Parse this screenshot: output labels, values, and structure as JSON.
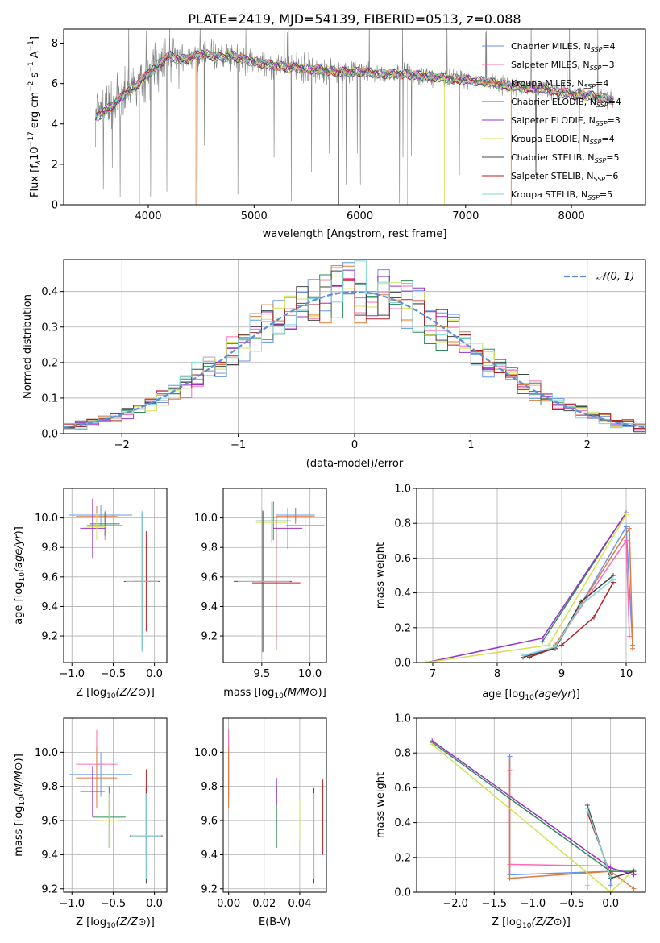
{
  "figure_title": "PLATE=2419, MJD=54139, FIBERID=0513, z=0.088",
  "colors": {
    "Chabrier MILES": "#6495ed",
    "Salpeter MILES": "#ff69b4",
    "Kroupa MILES": "#e07b39",
    "Chabrier ELODIE": "#2e8b57",
    "Salpeter ELODIE": "#9932cc",
    "Kroupa ELODIE": "#d4e157",
    "Chabrier STELIB": "#444444",
    "Salpeter STELIB": "#b22222",
    "Kroupa STELIB": "#7fd6d6",
    "data": "#808080",
    "normal": "#5b8fd9"
  },
  "chart_data": [
    {
      "id": "spectrum",
      "type": "line",
      "title": "PLATE=2419, MJD=54139, FIBERID=0513, z=0.088",
      "xlabel": "wavelength [Angstrom, rest frame]",
      "ylabel_parts": [
        "Flux [f",
        "λ",
        "10",
        "−17",
        " erg cm",
        "−2",
        " s",
        "−1",
        " A",
        "−1",
        "]"
      ],
      "xlim": [
        3200,
        8700
      ],
      "ylim": [
        0,
        8.7
      ],
      "xticks": [
        4000,
        5000,
        6000,
        7000,
        8000
      ],
      "yticks": [
        0,
        2,
        4,
        6,
        8
      ],
      "continuum": {
        "x": [
          3500,
          3600,
          3700,
          3800,
          3900,
          4000,
          4100,
          4200,
          4300,
          4400,
          4500,
          4600,
          4700,
          4800,
          4900,
          5000,
          5200,
          5400,
          5600,
          5800,
          6000,
          6200,
          6400,
          6600,
          6800,
          7000,
          7200,
          7400,
          7600,
          7800,
          8000,
          8200,
          8300,
          8400
        ],
        "y": [
          4.3,
          4.7,
          5.1,
          5.6,
          6.0,
          6.5,
          7.0,
          7.4,
          7.2,
          7.3,
          7.5,
          7.4,
          7.3,
          7.4,
          7.2,
          7.1,
          6.9,
          6.8,
          6.7,
          6.6,
          6.6,
          6.5,
          6.5,
          6.4,
          6.3,
          6.2,
          6.1,
          5.9,
          5.8,
          5.7,
          5.5,
          5.4,
          5.3,
          5.2
        ]
      },
      "legend": [
        {
          "model": "Chabrier MILES",
          "nssp": "4"
        },
        {
          "model": "Salpeter MILES",
          "nssp": "3"
        },
        {
          "model": "Kroupa MILES",
          "nssp": "4"
        },
        {
          "model": "Chabrier ELODIE",
          "nssp": "4"
        },
        {
          "model": "Salpeter ELODIE",
          "nssp": "3"
        },
        {
          "model": "Kroupa ELODIE",
          "nssp": "4"
        },
        {
          "model": "Chabrier STELIB",
          "nssp": "5"
        },
        {
          "model": "Salpeter STELIB",
          "nssp": "6"
        },
        {
          "model": "Kroupa STELIB",
          "nssp": "5"
        }
      ]
    },
    {
      "id": "residuals",
      "type": "bar",
      "xlabel": "(data-model)/error",
      "ylabel": "Normed distribution",
      "xlim": [
        -2.5,
        2.5
      ],
      "ylim": [
        0,
        0.49
      ],
      "xticks": [
        -2,
        -1,
        0,
        1,
        2
      ],
      "yticks": [
        0.0,
        0.1,
        0.2,
        0.3,
        0.4
      ],
      "bin_width": 0.1,
      "legend_label": "N(0,1)",
      "gaussian": {
        "mean": 0,
        "sigma": 1
      }
    },
    {
      "id": "age_vs_Z",
      "type": "scatter",
      "xlabel": "Z [log10(Z/Z⊙)]",
      "ylabel": "age  [log10(age/yr)]",
      "xlim": [
        -1.1,
        0.15
      ],
      "ylim": [
        9.02,
        10.2
      ],
      "xticks": [
        -1.0,
        -0.5,
        0.0
      ],
      "yticks": [
        9.2,
        9.4,
        9.6,
        9.8,
        10.0
      ],
      "points": [
        {
          "model": "Chabrier MILES",
          "x": -0.65,
          "xerr": 0.38,
          "y": 10.02,
          "yerr": 0.07
        },
        {
          "model": "Salpeter MILES",
          "x": -0.6,
          "xerr": 0.22,
          "y": 9.95,
          "yerr": 0.1
        },
        {
          "model": "Kroupa MILES",
          "x": -0.7,
          "xerr": 0.25,
          "y": 10.01,
          "yerr": 0.07
        },
        {
          "model": "Chabrier ELODIE",
          "x": -0.6,
          "xerr": 0.18,
          "y": 9.96,
          "yerr": 0.08
        },
        {
          "model": "Salpeter ELODIE",
          "x": -0.75,
          "xerr": 0.15,
          "y": 9.93,
          "yerr": 0.2
        },
        {
          "model": "Kroupa ELODIE",
          "x": -0.7,
          "xerr": 0.12,
          "y": 9.94,
          "yerr": 0.09
        },
        {
          "model": "Chabrier STELIB",
          "x": -0.15,
          "xerr": 0.22,
          "y": 9.57,
          "yerr": 0.47
        },
        {
          "model": "Salpeter STELIB",
          "x": -0.1,
          "xerr": 0.15,
          "y": 9.57,
          "yerr": 0.34
        },
        {
          "model": "Kroupa STELIB",
          "x": -0.15,
          "xerr": 0.2,
          "y": 9.57,
          "yerr": 0.48
        }
      ]
    },
    {
      "id": "age_vs_mass",
      "type": "scatter",
      "xlabel": "mass [log10(M/M⊙)]",
      "ylabel": "",
      "xlim": [
        9.1,
        10.17
      ],
      "ylim": [
        9.02,
        10.2
      ],
      "xticks": [
        9.5,
        10.0
      ],
      "yticks": [
        9.2,
        9.4,
        9.6,
        9.8,
        10.0
      ],
      "points": [
        {
          "model": "Chabrier MILES",
          "x": 9.85,
          "xerr": 0.2,
          "y": 10.02,
          "yerr": 0.05
        },
        {
          "model": "Salpeter MILES",
          "x": 9.95,
          "xerr": 0.2,
          "y": 9.95,
          "yerr": 0.07
        },
        {
          "model": "Kroupa MILES",
          "x": 9.85,
          "xerr": 0.2,
          "y": 10.01,
          "yerr": 0.05
        },
        {
          "model": "Chabrier ELODIE",
          "x": 9.62,
          "xerr": 0.18,
          "y": 9.98,
          "yerr": 0.13
        },
        {
          "model": "Salpeter ELODIE",
          "x": 9.77,
          "xerr": 0.15,
          "y": 9.93,
          "yerr": 0.14
        },
        {
          "model": "Kroupa ELODIE",
          "x": 9.6,
          "xerr": 0.16,
          "y": 9.97,
          "yerr": 0.14
        },
        {
          "model": "Chabrier STELIB",
          "x": 9.51,
          "xerr": 0.3,
          "y": 9.57,
          "yerr": 0.48
        },
        {
          "model": "Salpeter STELIB",
          "x": 9.65,
          "xerr": 0.25,
          "y": 9.56,
          "yerr": 0.45
        },
        {
          "model": "Kroupa STELIB",
          "x": 9.52,
          "xerr": 0.27,
          "y": 9.57,
          "yerr": 0.47
        }
      ]
    },
    {
      "id": "weight_vs_age",
      "type": "line",
      "xlabel": "age  [log10(age/yr)]",
      "ylabel": "mass weight",
      "xlim": [
        6.75,
        10.3
      ],
      "ylim": [
        0,
        1.0
      ],
      "xticks": [
        7,
        8,
        9,
        10
      ],
      "yticks": [
        0.0,
        0.2,
        0.4,
        0.6,
        0.8,
        1.0
      ],
      "series": [
        {
          "model": "Chabrier MILES",
          "x": [
            8.4,
            8.9,
            10.0,
            10.1
          ],
          "y": [
            0.04,
            0.08,
            0.78,
            0.1
          ]
        },
        {
          "model": "Salpeter MILES",
          "x": [
            8.9,
            10.0,
            10.05
          ],
          "y": [
            0.1,
            0.7,
            0.15
          ]
        },
        {
          "model": "Kroupa MILES",
          "x": [
            8.9,
            10.05,
            10.1
          ],
          "y": [
            0.1,
            0.77,
            0.08
          ]
        },
        {
          "model": "Chabrier ELODIE",
          "x": [
            8.7,
            10.0
          ],
          "y": [
            0.12,
            0.86
          ]
        },
        {
          "model": "Salpeter ELODIE",
          "x": [
            6.9,
            8.7,
            10.0
          ],
          "y": [
            0.0,
            0.14,
            0.86
          ]
        },
        {
          "model": "Kroupa ELODIE",
          "x": [
            6.9,
            8.8,
            10.0
          ],
          "y": [
            0.0,
            0.1,
            0.85
          ]
        },
        {
          "model": "Chabrier STELIB",
          "x": [
            8.4,
            8.9,
            9.3,
            9.8
          ],
          "y": [
            0.03,
            0.08,
            0.35,
            0.5
          ]
        },
        {
          "model": "Salpeter STELIB",
          "x": [
            8.5,
            9.0,
            9.5,
            9.8
          ],
          "y": [
            0.03,
            0.1,
            0.26,
            0.46
          ]
        },
        {
          "model": "Kroupa STELIB",
          "x": [
            8.4,
            8.9,
            9.3,
            9.8
          ],
          "y": [
            0.04,
            0.09,
            0.33,
            0.48
          ]
        }
      ]
    },
    {
      "id": "mass_vs_Z",
      "type": "scatter",
      "xlabel": "Z [log10(Z/Z⊙)]",
      "ylabel": "mass [log10(M/M⊙)]",
      "xlim": [
        -1.1,
        0.15
      ],
      "ylim": [
        9.18,
        10.2
      ],
      "xticks": [
        -1.0,
        -0.5,
        0.0
      ],
      "yticks": [
        9.2,
        9.4,
        9.6,
        9.8,
        10.0
      ],
      "points": [
        {
          "model": "Chabrier MILES",
          "x": -0.65,
          "xerr": 0.38,
          "y": 9.87,
          "yerr": 0.13
        },
        {
          "model": "Salpeter MILES",
          "x": -0.7,
          "xerr": 0.25,
          "y": 9.93,
          "yerr": 0.2
        },
        {
          "model": "Kroupa MILES",
          "x": -0.7,
          "xerr": 0.25,
          "y": 9.85,
          "yerr": 0.18
        },
        {
          "model": "Chabrier ELODIE",
          "x": -0.55,
          "xerr": 0.2,
          "y": 9.62,
          "yerr": 0.18
        },
        {
          "model": "Salpeter ELODIE",
          "x": -0.75,
          "xerr": 0.15,
          "y": 9.77,
          "yerr": 0.15
        },
        {
          "model": "Kroupa ELODIE",
          "x": -0.55,
          "xerr": 0.12,
          "y": 9.6,
          "yerr": 0.16
        },
        {
          "model": "Chabrier STELIB",
          "x": -0.1,
          "xerr": 0.2,
          "y": 9.51,
          "yerr": 0.28
        },
        {
          "model": "Salpeter STELIB",
          "x": -0.1,
          "xerr": 0.13,
          "y": 9.65,
          "yerr": 0.25
        },
        {
          "model": "Kroupa STELIB",
          "x": -0.1,
          "xerr": 0.18,
          "y": 9.51,
          "yerr": 0.25
        }
      ]
    },
    {
      "id": "mass_vs_EBV",
      "type": "scatter",
      "xlabel": "E(B-V)",
      "ylabel": "",
      "xlim": [
        -0.003,
        0.055
      ],
      "ylim": [
        9.18,
        10.2
      ],
      "xticks": [
        0.0,
        0.02,
        0.04
      ],
      "yticks": [
        9.2,
        9.4,
        9.6,
        9.8,
        10.0
      ],
      "points": [
        {
          "model": "Chabrier MILES",
          "x": 0.0,
          "y": 9.87,
          "yerr": 0.13
        },
        {
          "model": "Salpeter MILES",
          "x": 0.0,
          "y": 9.93,
          "yerr": 0.2
        },
        {
          "model": "Kroupa MILES",
          "x": 0.0,
          "y": 9.85,
          "yerr": 0.18
        },
        {
          "model": "Chabrier ELODIE",
          "x": 0.027,
          "y": 9.62,
          "yerr": 0.18
        },
        {
          "model": "Salpeter ELODIE",
          "x": 0.027,
          "y": 9.77,
          "yerr": 0.08
        },
        {
          "model": "Kroupa ELODIE",
          "x": 0.04,
          "y": 9.6,
          "yerr": 0.12
        },
        {
          "model": "Chabrier STELIB",
          "x": 0.048,
          "y": 9.51,
          "yerr": 0.28
        },
        {
          "model": "Salpeter STELIB",
          "x": 0.053,
          "y": 9.62,
          "yerr": 0.22
        },
        {
          "model": "Kroupa STELIB",
          "x": 0.048,
          "y": 9.51,
          "yerr": 0.25
        }
      ]
    },
    {
      "id": "weight_vs_Z",
      "type": "line",
      "xlabel": "Z [log10(Z/Z⊙)]",
      "ylabel": "mass weight",
      "xlim": [
        -2.5,
        0.45
      ],
      "ylim": [
        0,
        1.0
      ],
      "xticks": [
        -2.0,
        -1.5,
        -1.0,
        -0.5,
        0.0
      ],
      "yticks": [
        0.0,
        0.2,
        0.4,
        0.6,
        0.8,
        1.0
      ],
      "series": [
        {
          "model": "Chabrier MILES",
          "x": [
            -1.3,
            -1.3,
            0.0,
            0.0
          ],
          "y": [
            0.78,
            0.1,
            0.12,
            0.04
          ]
        },
        {
          "model": "Salpeter MILES",
          "x": [
            -1.3,
            -1.3,
            0.0
          ],
          "y": [
            0.7,
            0.16,
            0.15
          ]
        },
        {
          "model": "Kroupa MILES",
          "x": [
            -1.3,
            -1.3,
            0.0,
            0.3
          ],
          "y": [
            0.77,
            0.08,
            0.12,
            0.02
          ]
        },
        {
          "model": "Chabrier ELODIE",
          "x": [
            -2.3,
            0.0,
            0.3
          ],
          "y": [
            0.86,
            0.12,
            0.12
          ]
        },
        {
          "model": "Salpeter ELODIE",
          "x": [
            -2.3,
            0.0,
            0.3
          ],
          "y": [
            0.87,
            0.14,
            0.1
          ]
        },
        {
          "model": "Kroupa ELODIE",
          "x": [
            -2.3,
            0.0,
            0.3
          ],
          "y": [
            0.85,
            0.0,
            0.13
          ]
        },
        {
          "model": "Chabrier STELIB",
          "x": [
            -0.3,
            -0.3,
            0.0,
            0.3
          ],
          "y": [
            0.03,
            0.5,
            0.08,
            0.12
          ]
        },
        {
          "model": "Salpeter STELIB",
          "x": [
            -0.3,
            0.0
          ],
          "y": [
            0.46,
            0.1
          ]
        },
        {
          "model": "Kroupa STELIB",
          "x": [
            -0.3,
            -0.3,
            0.0
          ],
          "y": [
            0.04,
            0.48,
            0.09
          ]
        }
      ]
    }
  ]
}
